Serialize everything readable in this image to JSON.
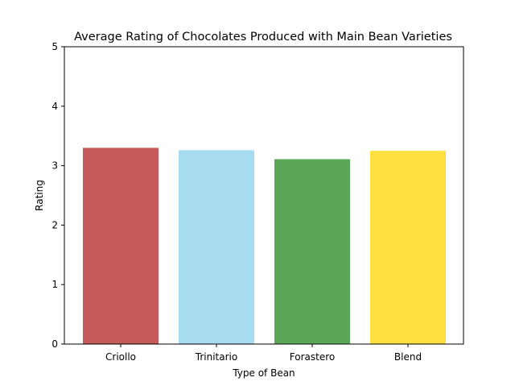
{
  "chart_data": {
    "type": "bar",
    "title": "Average Rating of Chocolates Produced with Main Bean Varieties",
    "xlabel": "Type of Bean",
    "ylabel": "Rating",
    "categories": [
      "Criollo",
      "Trinitario",
      "Forastero",
      "Blend"
    ],
    "values": [
      3.3,
      3.26,
      3.11,
      3.25
    ],
    "colors": [
      "#c55a5a",
      "#a7dbf0",
      "#5aa75a",
      "#ffe040"
    ],
    "ylim": [
      0,
      5
    ],
    "yticks": [
      "0",
      "1",
      "2",
      "3",
      "4",
      "5"
    ],
    "grid": false,
    "legend": "none"
  }
}
